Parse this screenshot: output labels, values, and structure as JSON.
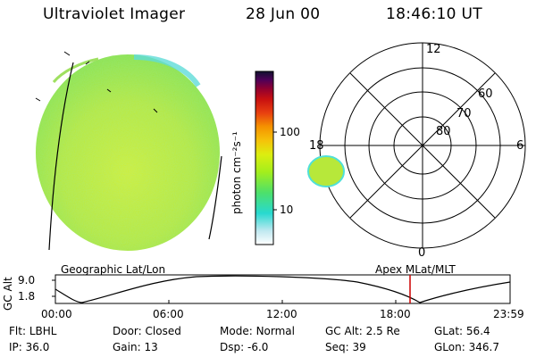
{
  "header": {
    "instrument": "Ultraviolet Imager",
    "date": "28 Jun 00",
    "time": "18:46:10 UT"
  },
  "colorbar": {
    "label": "photon cm⁻²s⁻¹",
    "ticks": [
      "100",
      "10"
    ]
  },
  "polar_plot": {
    "lat_labels": [
      "80",
      "70",
      "60"
    ],
    "mlt_labels": [
      "12",
      "18",
      "6",
      "0"
    ]
  },
  "timeline": {
    "left_label": "Geographic Lat/Lon",
    "right_label": "Apex MLat/MLT",
    "y_axis_label": "GC Alt",
    "y_ticks": [
      "9.0",
      "1.8"
    ],
    "x_ticks": [
      "00:00",
      "06:00",
      "12:00",
      "18:00",
      "23:59"
    ],
    "marker_time": "18:46"
  },
  "status": {
    "row1": [
      {
        "label": "Flt:",
        "value": "LBHL"
      },
      {
        "label": "Door:",
        "value": "Closed"
      },
      {
        "label": "Mode:",
        "value": "Normal"
      },
      {
        "label": "GC Alt:",
        "value": "2.5 Re"
      },
      {
        "label": "GLat:",
        "value": "56.4"
      }
    ],
    "row2": [
      {
        "label": "IP:",
        "value": "36.0"
      },
      {
        "label": "Gain:",
        "value": "13"
      },
      {
        "label": "Dsp:",
        "value": "-6.0"
      },
      {
        "label": "Seq:",
        "value": "39"
      },
      {
        "label": "GLon:",
        "value": "346.7"
      }
    ]
  },
  "colors": {
    "disk_fill": "#b7e83a",
    "disk_edge": "#4fe0d8",
    "colorbar": [
      "#ffffff",
      "#bfe8f0",
      "#28d9d0",
      "#4de06a",
      "#a4ee1c",
      "#dcee10",
      "#f5c30a",
      "#f59300",
      "#e84010",
      "#c81010",
      "#900030",
      "#500058",
      "#101030"
    ],
    "marker": "#cc0000"
  }
}
